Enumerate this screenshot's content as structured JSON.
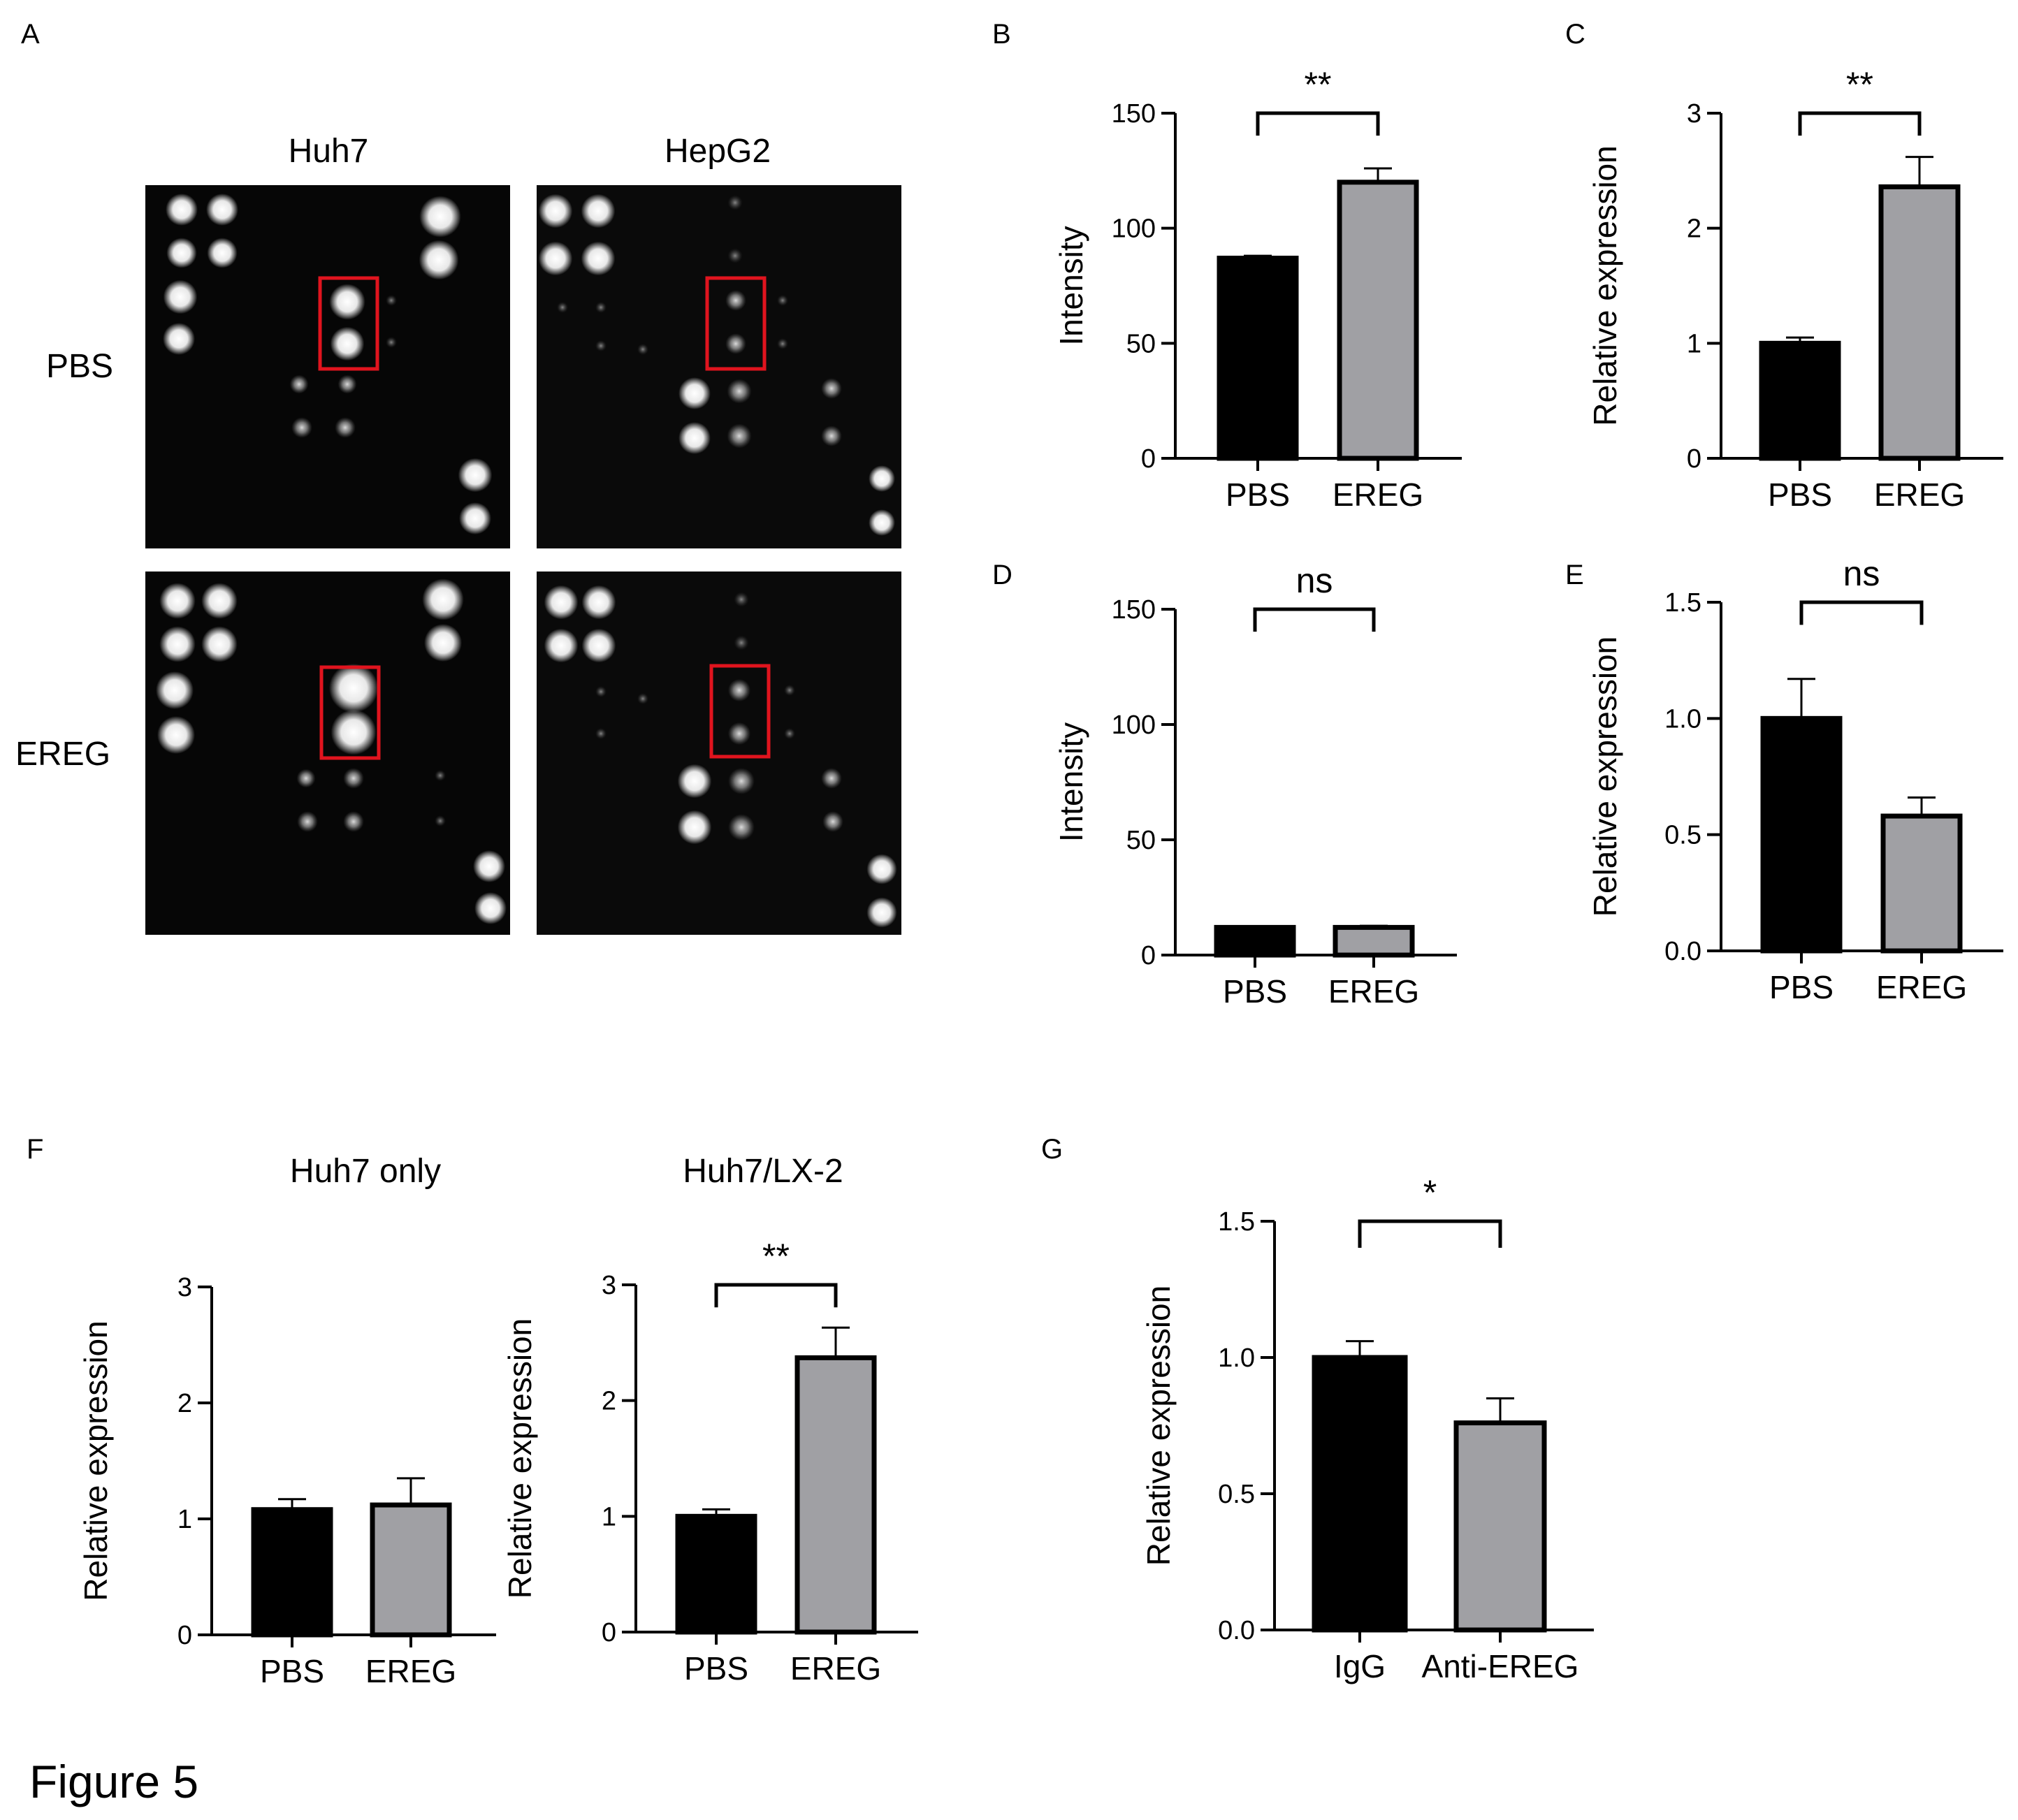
{
  "figure_caption": "Figure 5",
  "panel_labels": [
    "A",
    "B",
    "C",
    "D",
    "E",
    "F",
    "G"
  ],
  "blot": {
    "columns": [
      "Huh7",
      "HepG2"
    ],
    "rows": [
      "PBS",
      "EREG"
    ],
    "highlight_color": "#e0141e"
  },
  "colors": {
    "bar_primary": "#000000",
    "bar_secondary": "#a0a0a4",
    "axis": "#000000"
  },
  "chart_data": [
    {
      "id": "B",
      "type": "bar",
      "title": "",
      "ylabel": "Intensity",
      "categories": [
        "PBS",
        "EREG"
      ],
      "values": [
        87,
        120
      ],
      "errors": [
        1,
        6
      ],
      "ylim": [
        0,
        150
      ],
      "yticks": [
        "0",
        "50",
        "100",
        "150"
      ],
      "significance": "**"
    },
    {
      "id": "C",
      "type": "bar",
      "title": "",
      "ylabel": "Relative expression",
      "categories": [
        "PBS",
        "EREG"
      ],
      "values": [
        1.0,
        2.36
      ],
      "errors": [
        0.05,
        0.26
      ],
      "ylim": [
        0,
        3
      ],
      "yticks": [
        "0",
        "1",
        "2",
        "3"
      ],
      "significance": "**"
    },
    {
      "id": "D",
      "type": "bar",
      "title": "",
      "ylabel": "Intensity",
      "categories": [
        "PBS",
        "EREG"
      ],
      "values": [
        12,
        12
      ],
      "errors": [
        0.5,
        0.7
      ],
      "ylim": [
        0,
        150
      ],
      "yticks": [
        "0",
        "50",
        "100",
        "150"
      ],
      "significance": "ns"
    },
    {
      "id": "E",
      "type": "bar",
      "title": "",
      "ylabel": "Relative expression",
      "categories": [
        "PBS",
        "EREG"
      ],
      "values": [
        1.0,
        0.58
      ],
      "errors": [
        0.17,
        0.08
      ],
      "ylim": [
        0,
        1.5
      ],
      "yticks": [
        "0.0",
        "0.5",
        "1.0",
        "1.5"
      ],
      "significance": "ns"
    },
    {
      "id": "F1",
      "type": "bar",
      "title": "Huh7 only",
      "ylabel": "Relative expression",
      "categories": [
        "PBS",
        "EREG"
      ],
      "values": [
        1.08,
        1.12
      ],
      "errors": [
        0.09,
        0.23
      ],
      "ylim": [
        0,
        3
      ],
      "yticks": [
        "0",
        "1",
        "2",
        "3"
      ],
      "significance": ""
    },
    {
      "id": "F2",
      "type": "bar",
      "title": "Huh7/LX-2",
      "ylabel": "Relative expression",
      "categories": [
        "PBS",
        "EREG"
      ],
      "values": [
        1.0,
        2.37
      ],
      "errors": [
        0.06,
        0.26
      ],
      "ylim": [
        0,
        3
      ],
      "yticks": [
        "0",
        "1",
        "2",
        "3"
      ],
      "significance": "**"
    },
    {
      "id": "G",
      "type": "bar",
      "title": "",
      "ylabel": "Relative expression",
      "categories": [
        "IgG",
        "Anti-EREG"
      ],
      "values": [
        1.0,
        0.76
      ],
      "errors": [
        0.06,
        0.09
      ],
      "ylim": [
        0,
        1.5
      ],
      "yticks": [
        "0.0",
        "0.5",
        "1.0",
        "1.5"
      ],
      "significance": "*"
    }
  ]
}
